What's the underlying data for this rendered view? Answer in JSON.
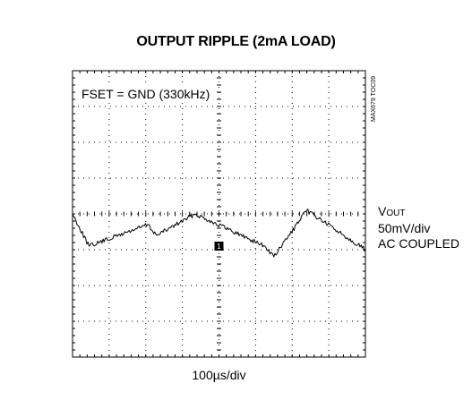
{
  "chart_data": {
    "type": "line",
    "title": "OUTPUT RIPPLE (2mA LOAD)",
    "annotation": "FSET = GND (330kHz)",
    "xlabel": "100µs/div",
    "side_label": {
      "signal_prefix": "V",
      "signal_subscript": "OUT",
      "scale": "50mV/div",
      "coupling": "AC COUPLED"
    },
    "figure_id": "MAX679 TOC09",
    "marker": "1",
    "grid": {
      "x_divisions": 8,
      "y_divisions": 8,
      "visible": true
    },
    "xlim": [
      0,
      8
    ],
    "ylim": [
      -4,
      4
    ],
    "units": {
      "x": "div",
      "y": "div"
    },
    "series": [
      {
        "x": [
          0.0,
          0.45,
          0.45,
          2.05,
          2.05,
          2.3,
          2.3,
          3.35,
          3.35,
          5.25,
          5.25,
          5.5,
          5.5,
          6.4,
          6.4,
          8.0
        ],
        "y": [
          0.0,
          -0.9,
          -0.9,
          -0.3,
          -0.3,
          -0.6,
          -0.6,
          0.0,
          0.0,
          -0.9,
          -0.9,
          -1.2,
          -1.2,
          0.1,
          0.1,
          -1.0
        ]
      }
    ]
  }
}
